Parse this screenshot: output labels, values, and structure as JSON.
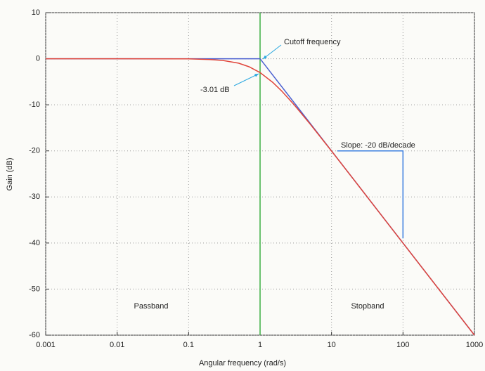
{
  "chart_data": {
    "type": "line",
    "xlabel": "Angular frequency (rad/s)",
    "ylabel": "Gain (dB)",
    "xscale": "log",
    "xlim": [
      0.001,
      1000
    ],
    "ylim": [
      -60,
      10
    ],
    "xticks": [
      0.001,
      0.01,
      0.1,
      1,
      10,
      100,
      1000
    ],
    "yticks": [
      10,
      0,
      -10,
      -20,
      -30,
      -40,
      -50,
      -60
    ],
    "grid": true,
    "series": [
      {
        "color": "#3cb043",
        "x": [
          1,
          1
        ],
        "values": [
          10,
          -60
        ]
      },
      {
        "color": "#4a5fd0",
        "x": [
          0.001,
          1,
          1000
        ],
        "values": [
          0,
          0,
          -60
        ]
      },
      {
        "color": "#e0443a",
        "x": [
          0.001,
          0.01,
          0.1,
          0.2,
          0.3,
          0.5,
          0.7,
          1,
          1.5,
          2,
          3,
          5,
          7,
          10,
          20,
          50,
          100,
          1000
        ],
        "values": [
          0,
          0,
          -0.04,
          -0.17,
          -0.37,
          -0.97,
          -1.74,
          -3.01,
          -5.12,
          -6.99,
          -10,
          -14.15,
          -17,
          -20.04,
          -26.03,
          -33.98,
          -40,
          -60
        ]
      },
      {
        "color": "#3a7ee0",
        "x": [
          12,
          100,
          100
        ],
        "values": [
          -20,
          -20,
          -39
        ]
      }
    ],
    "annotations": [
      "Cutoff frequency",
      "-3.01 dB",
      "Slope: -20 dB/decade",
      "Passband",
      "Stopband"
    ]
  }
}
